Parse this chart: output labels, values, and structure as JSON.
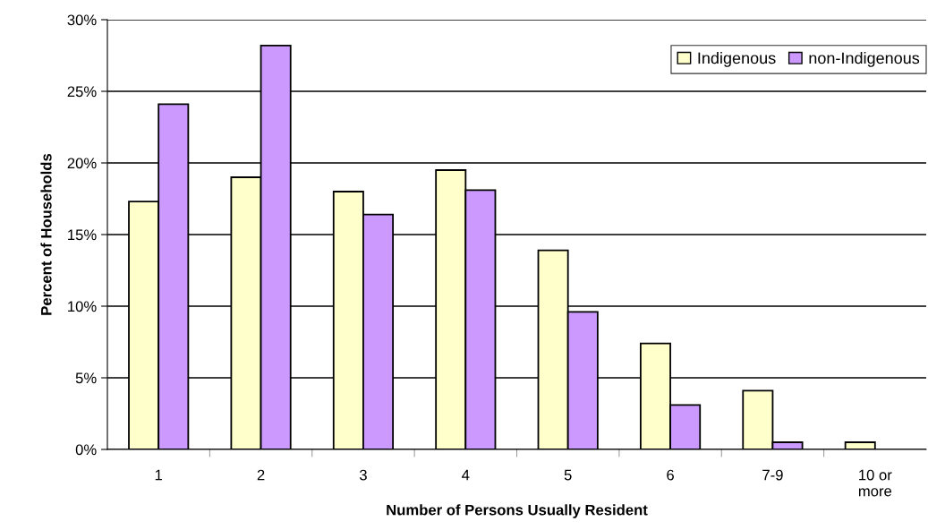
{
  "chart_data": {
    "type": "bar",
    "xlabel": "Number of Persons Usually Resident",
    "ylabel": "Percent of Households",
    "categories": [
      "1",
      "2",
      "3",
      "4",
      "5",
      "6",
      "7-9",
      "10 or\nmore"
    ],
    "series": [
      {
        "name": "Indigenous",
        "color": "#ffffcc",
        "values": [
          17.3,
          19.0,
          18.0,
          19.5,
          13.9,
          7.4,
          4.1,
          0.5
        ]
      },
      {
        "name": "non-Indigenous",
        "color": "#cc99ff",
        "values": [
          24.1,
          28.2,
          16.4,
          18.1,
          9.6,
          3.1,
          0.5,
          null
        ]
      }
    ],
    "ylim": [
      0,
      30
    ],
    "yticks": [
      {
        "value": 0,
        "label": "0%"
      },
      {
        "value": 5,
        "label": "5%"
      },
      {
        "value": 10,
        "label": "10%"
      },
      {
        "value": 15,
        "label": "15%"
      },
      {
        "value": 20,
        "label": "20%"
      },
      {
        "value": 25,
        "label": "25%"
      },
      {
        "value": 30,
        "label": "30%"
      }
    ],
    "grid": "y",
    "legend": "top right"
  }
}
